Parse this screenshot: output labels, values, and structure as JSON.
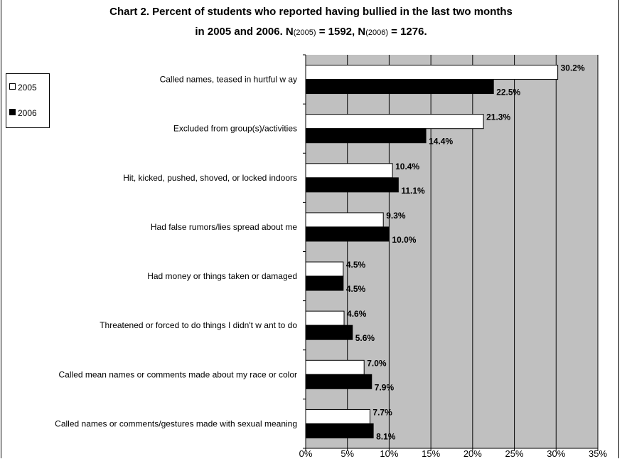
{
  "title_line1": "Chart 2. Percent of students who reported having  bullied in the last two months",
  "title_line2": {
    "prefix": "in 2005 and 2006.  N",
    "sub1": "(2005)",
    "mid": " = 1592, N",
    "sub2": "(2006)",
    "suffix": " = 1276."
  },
  "colors": {
    "plot_bg": "#c0c0c0",
    "bar_2005": "#ffffff",
    "bar_2006": "#000000",
    "grid": "#000000"
  },
  "chart_data": {
    "type": "bar",
    "orientation": "horizontal",
    "categories": [
      "Called names, teased in hurtful w ay",
      "Excluded from group(s)/activities",
      "Hit, kicked, pushed, shoved, or locked indoors",
      "Had false rumors/lies spread about me",
      "Had money or things taken or damaged",
      "Threatened or forced to do things I didn't w ant to do",
      "Called mean names or comments made about my race or color",
      "Called  names or comments/gestures made with sexual meaning"
    ],
    "series": [
      {
        "name": "2005",
        "values": [
          30.2,
          21.3,
          10.4,
          9.3,
          4.5,
          4.6,
          7.0,
          7.7
        ],
        "labels": [
          "30.2%",
          "21.3%",
          "10.4%",
          "9.3%",
          "4.5%",
          "4.6%",
          "7.0%",
          "7.7%"
        ]
      },
      {
        "name": "2006",
        "values": [
          22.5,
          14.4,
          11.1,
          10.0,
          4.5,
          5.6,
          7.9,
          8.1
        ],
        "labels": [
          "22.5%",
          "14.4%",
          "11.1%",
          "10.0%",
          "4.5%",
          "5.6%",
          "7.9%",
          "8.1%"
        ]
      }
    ],
    "xlim": [
      0,
      35
    ],
    "xticks": [
      0,
      5,
      10,
      15,
      20,
      25,
      30,
      35
    ],
    "xtick_labels": [
      "0%",
      "5%",
      "10%",
      "15%",
      "20%",
      "25%",
      "30%",
      "35%"
    ],
    "grid": true,
    "legend": "left"
  }
}
